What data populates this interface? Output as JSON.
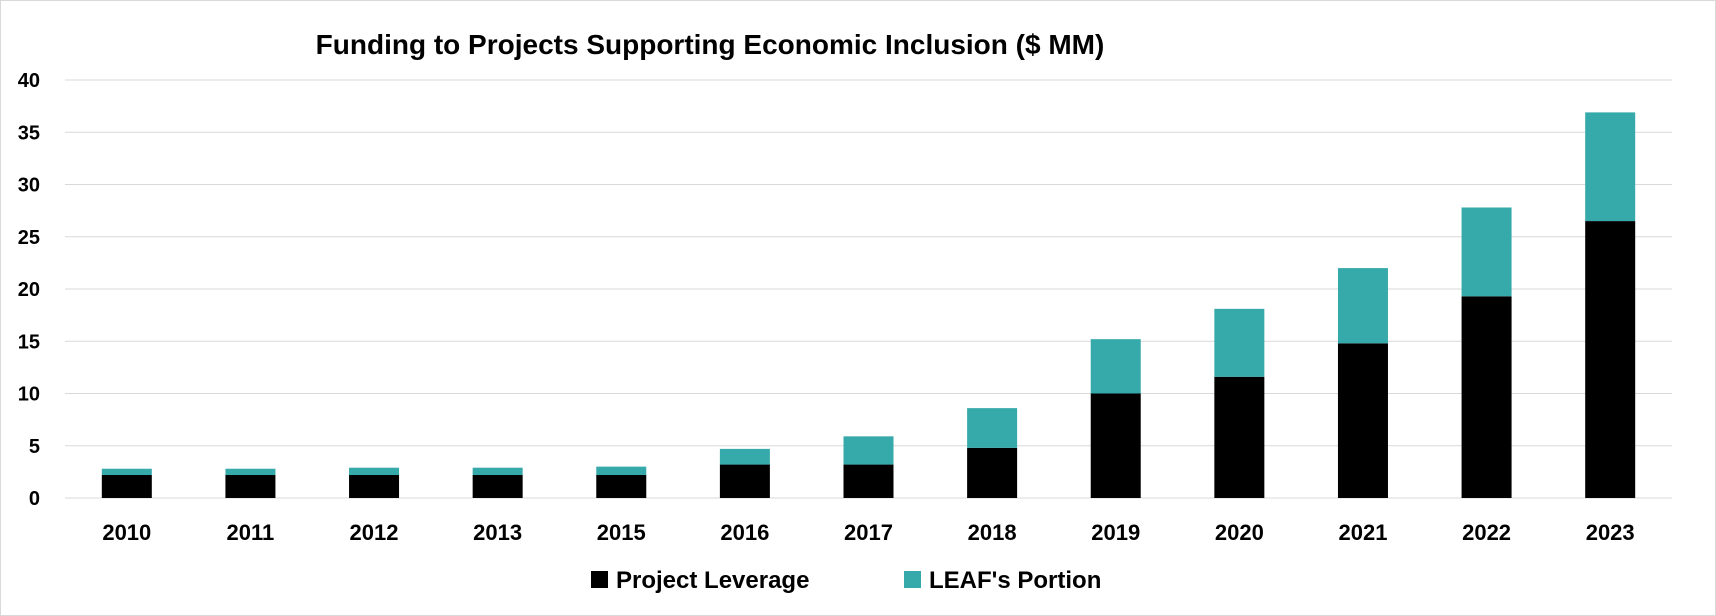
{
  "chart_data": {
    "type": "bar",
    "stacked": true,
    "title": "Funding to Projects Supporting Economic Inclusion ($ MM)",
    "xlabel": "",
    "ylabel": "",
    "ylim": [
      0,
      40
    ],
    "yticks": [
      0,
      5,
      10,
      15,
      20,
      25,
      30,
      35,
      40
    ],
    "grid": true,
    "legend_position": "bottom",
    "categories": [
      "2010",
      "2011",
      "2012",
      "2013",
      "2015",
      "2016",
      "2017",
      "2018",
      "2019",
      "2020",
      "2021",
      "2022",
      "2023"
    ],
    "series": [
      {
        "name": "Project Leverage",
        "color": "#000000",
        "values": [
          2.2,
          2.2,
          2.2,
          2.2,
          2.2,
          3.2,
          3.2,
          4.8,
          10.0,
          11.6,
          14.8,
          19.3,
          26.5
        ]
      },
      {
        "name": "LEAF's Portion",
        "color": "#36A9AA",
        "values": [
          0.6,
          0.6,
          0.7,
          0.7,
          0.8,
          1.5,
          2.7,
          3.8,
          5.2,
          6.5,
          7.2,
          8.5,
          10.4
        ]
      }
    ]
  }
}
